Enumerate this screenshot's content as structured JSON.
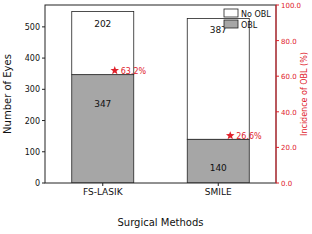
{
  "chart_data": {
    "type": "bar",
    "stacked": true,
    "data_labels": true,
    "legend": "upper right",
    "categories": [
      "FS-LASIK",
      "SMILE"
    ],
    "x_label": "Surgical Methods",
    "y_label": "Number of Eyes",
    "y2_label": "Incidence of OBL (%)",
    "ylim": [
      0,
      570
    ],
    "yticks": [
      0,
      100,
      200,
      300,
      400,
      500
    ],
    "y2lim": [
      0,
      100
    ],
    "y2ticks": [
      {
        "value": 0,
        "label": "0.0"
      },
      {
        "value": 20,
        "label": "20.0"
      },
      {
        "value": 40,
        "label": "40.0"
      },
      {
        "value": 60,
        "label": "60.0"
      },
      {
        "value": 80,
        "label": "80.0"
      },
      {
        "value": 100,
        "label": "100.0"
      }
    ],
    "series": [
      {
        "name": "OBL",
        "color": "#a6a6a6",
        "values": [
          347,
          140
        ]
      },
      {
        "name": "No OBL",
        "color": "#ffffff",
        "values": [
          202,
          387
        ]
      },
      {
        "type": "scatter",
        "axis": "y2",
        "marker": "star",
        "color": "#e0202a",
        "values": [
          63.2,
          26.6
        ],
        "value_labels": [
          "63.2%",
          "26.6%"
        ]
      }
    ]
  }
}
